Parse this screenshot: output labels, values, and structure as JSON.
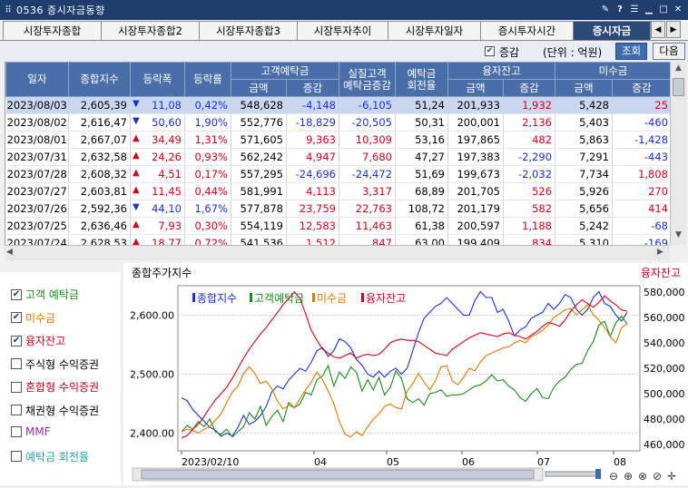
{
  "window": {
    "title": "0536 증시자금동향"
  },
  "tabs": [
    "시장투자종합",
    "시장투자종합2",
    "시장투자종합3",
    "시장투자추이",
    "시장투자일자",
    "증시투자시간",
    "증시자금"
  ],
  "active_tab": 6,
  "toolbar": {
    "change_label": "증감",
    "unit_label": "(단위 : 억원)",
    "search_label": "조회",
    "next_label": "다음"
  },
  "table": {
    "group_headers": {
      "deposit": "고객예탁금",
      "real_deposit": "실질고객\n예탁금증감",
      "turnover": "예탁금\n회전율",
      "credit": "융자잔고",
      "unpaid": "미수금"
    },
    "headers": {
      "date": "일자",
      "index": "종합지수",
      "change": "등락폭",
      "rate": "등락률",
      "amount": "금액",
      "delta": "증감"
    },
    "rows": [
      {
        "date": "2023/08/03",
        "index": "2,605,39",
        "dir": "down",
        "change": "11,08",
        "rate": "0,42%",
        "dep": "548,628",
        "dep_d": "-4,148",
        "real": "-6,105",
        "turn": "51,24",
        "cr": "201,933",
        "cr_d": "1,932",
        "un": "5,428",
        "un_d": "25"
      },
      {
        "date": "2023/08/02",
        "index": "2,616,47",
        "dir": "down",
        "change": "50,60",
        "rate": "1,90%",
        "dep": "552,776",
        "dep_d": "-18,829",
        "real": "-20,505",
        "turn": "50,31",
        "cr": "200,001",
        "cr_d": "2,136",
        "un": "5,403",
        "un_d": "-460"
      },
      {
        "date": "2023/08/01",
        "index": "2,667,07",
        "dir": "up",
        "change": "34,49",
        "rate": "1,31%",
        "dep": "571,605",
        "dep_d": "9,363",
        "real": "10,309",
        "turn": "53,16",
        "cr": "197,865",
        "cr_d": "482",
        "un": "5,863",
        "un_d": "-1,428"
      },
      {
        "date": "2023/07/31",
        "index": "2,632,58",
        "dir": "up",
        "change": "24,26",
        "rate": "0,93%",
        "dep": "562,242",
        "dep_d": "4,947",
        "real": "7,680",
        "turn": "47,27",
        "cr": "197,383",
        "cr_d": "-2,290",
        "un": "7,291",
        "un_d": "-443"
      },
      {
        "date": "2023/07/28",
        "index": "2,608,32",
        "dir": "up",
        "change": "4,51",
        "rate": "0,17%",
        "dep": "557,295",
        "dep_d": "-24,696",
        "real": "-24,472",
        "turn": "51,69",
        "cr": "199,673",
        "cr_d": "-2,032",
        "un": "7,734",
        "un_d": "1,808"
      },
      {
        "date": "2023/07/27",
        "index": "2,603,81",
        "dir": "up",
        "change": "11,45",
        "rate": "0,44%",
        "dep": "581,991",
        "dep_d": "4,113",
        "real": "3,317",
        "turn": "68,89",
        "cr": "201,705",
        "cr_d": "526",
        "un": "5,926",
        "un_d": "270"
      },
      {
        "date": "2023/07/26",
        "index": "2,592,36",
        "dir": "down",
        "change": "44,10",
        "rate": "1,67%",
        "dep": "577,878",
        "dep_d": "23,759",
        "real": "22,763",
        "turn": "108,72",
        "cr": "201,179",
        "cr_d": "582",
        "un": "5,656",
        "un_d": "414"
      },
      {
        "date": "2023/07/25",
        "index": "2,636,46",
        "dir": "up",
        "change": "7,93",
        "rate": "0,30%",
        "dep": "554,119",
        "dep_d": "12,583",
        "real": "11,463",
        "turn": "61,38",
        "cr": "200,597",
        "cr_d": "1,188",
        "un": "5,242",
        "un_d": "-68"
      },
      {
        "date": "2023/07/24",
        "index": "2,628,53",
        "dir": "up",
        "change": "18,77",
        "rate": "0,72%",
        "dep": "541,536",
        "dep_d": "1,512",
        "real": "847",
        "turn": "63,00",
        "cr": "199,409",
        "cr_d": "834",
        "un": "5,310",
        "un_d": "-169"
      }
    ]
  },
  "sidebar": {
    "items": [
      {
        "label": "고객 예탁금",
        "checked": true,
        "color": "#1a8a1a"
      },
      {
        "label": "미수금",
        "checked": true,
        "color": "#e07800"
      },
      {
        "label": "융자잔고",
        "checked": true,
        "color": "#d0021b"
      },
      {
        "label": "주식형 수익증권",
        "checked": false,
        "color": "#000000"
      },
      {
        "label": "혼합형 수익증권",
        "checked": false,
        "color": "#c0001a"
      },
      {
        "label": "채권형 수익증권",
        "checked": false,
        "color": "#000000"
      },
      {
        "label": "MMF",
        "checked": false,
        "color": "#9b2fae"
      },
      {
        "label": "예탁금 회전율",
        "checked": false,
        "color": "#2aa198"
      }
    ]
  },
  "chart": {
    "left_title": "종합주가지수",
    "right_title": "융자잔고",
    "legend": [
      {
        "label": "종합지수",
        "color": "#1c2fd1"
      },
      {
        "label": "고객예탁금",
        "color": "#1a8a1a"
      },
      {
        "label": "미수금",
        "color": "#e07800"
      },
      {
        "label": "융자잔고",
        "color": "#d0021b"
      }
    ],
    "y_left_ticks": [
      "2,600.00",
      "2,500.00",
      "2,400.00"
    ],
    "y_right_ticks": [
      "580,000",
      "560,000",
      "540,000",
      "520,000",
      "500,000",
      "480,000",
      "460,000"
    ],
    "x_ticks": [
      "2023/02/10",
      "04",
      "05",
      "06",
      "07",
      "08"
    ]
  },
  "chart_data": {
    "type": "line",
    "x_start": "2023/02/10",
    "x_end": "2023/08/03",
    "series": [
      {
        "name": "종합지수",
        "color": "#1c2fd1",
        "values": [
          2460,
          2455,
          2440,
          2430,
          2420,
          2410,
          2405,
          2395,
          2400,
          2395,
          2410,
          2430,
          2415,
          2420,
          2430,
          2445,
          2470,
          2480,
          2475,
          2490,
          2500,
          2510,
          2505,
          2520,
          2540,
          2545,
          2530,
          2540,
          2560,
          2555,
          2545,
          2525,
          2515,
          2500,
          2495,
          2505,
          2495,
          2505,
          2510,
          2500,
          2510,
          2540,
          2570,
          2595,
          2605,
          2615,
          2620,
          2630,
          2620,
          2610,
          2600,
          2600,
          2625,
          2640,
          2630,
          2630,
          2605,
          2610,
          2590,
          2565,
          2575,
          2580,
          2595,
          2600,
          2605,
          2620,
          2610,
          2620,
          2635,
          2630,
          2610,
          2600,
          2610,
          2630,
          2640,
          2620,
          2615,
          2600,
          2590,
          2605
        ]
      },
      {
        "name": "고객예탁금",
        "color": "#1a8a1a",
        "values": [
          470,
          475,
          472,
          478,
          474,
          480,
          470,
          468,
          472,
          466,
          470,
          474,
          485,
          480,
          490,
          475,
          482,
          487,
          478,
          493,
          489,
          492,
          501,
          499,
          511,
          514,
          522,
          506,
          517,
          512,
          521,
          517,
          502,
          511,
          503,
          513,
          499,
          505,
          518,
          512,
          496,
          493,
          496,
          491,
          500,
          501,
          503,
          498,
          499,
          499,
          500,
          503,
          506,
          507,
          510,
          515,
          510,
          511,
          506,
          503,
          497,
          494,
          500,
          504,
          497,
          496,
          505,
          510,
          513,
          519,
          523,
          524,
          534,
          541,
          554,
          557,
          545,
          556,
          561,
          555
        ]
      },
      {
        "name": "미수금",
        "color": "#e07800",
        "values": [
          470,
          472,
          471,
          469,
          472,
          474,
          479,
          484,
          493,
          501,
          506,
          516,
          521,
          516,
          508,
          510,
          504,
          494,
          488,
          491,
          489,
          496,
          503,
          509,
          517,
          511,
          502,
          492,
          478,
          468,
          466,
          470,
          467,
          474,
          480,
          484,
          490,
          492,
          489,
          488,
          502,
          508,
          516,
          509,
          503,
          510,
          521,
          522,
          510,
          507,
          513,
          520,
          518,
          525,
          530,
          532,
          534,
          536,
          537,
          540,
          542,
          540,
          545,
          547,
          550,
          554,
          560,
          563,
          566,
          567,
          562,
          566,
          570,
          562,
          558,
          552,
          545,
          540,
          552,
          555
        ]
      },
      {
        "name": "융자잔고",
        "color": "#d0021b",
        "values": [
          465,
          467,
          472,
          476,
          482,
          489,
          495,
          500,
          505,
          512,
          520,
          528,
          535,
          541,
          547,
          552,
          558,
          564,
          570,
          575,
          580,
          575,
          563,
          550,
          542,
          535,
          532,
          529,
          528,
          530,
          532,
          528,
          530,
          531,
          530,
          531,
          535,
          540,
          542,
          543,
          542,
          542,
          541,
          538,
          535,
          532,
          531,
          530,
          535,
          538,
          541,
          544,
          546,
          548,
          547,
          546,
          545,
          547,
          548,
          546,
          545,
          543,
          546,
          549,
          553,
          556,
          555,
          553,
          558,
          565,
          570,
          574,
          571,
          568,
          572,
          577,
          573,
          570,
          566,
          565
        ]
      }
    ],
    "y_left_range": [
      2370,
      2650
    ],
    "y_right_range": [
      455,
      585
    ],
    "legend_placement": "top-left"
  }
}
